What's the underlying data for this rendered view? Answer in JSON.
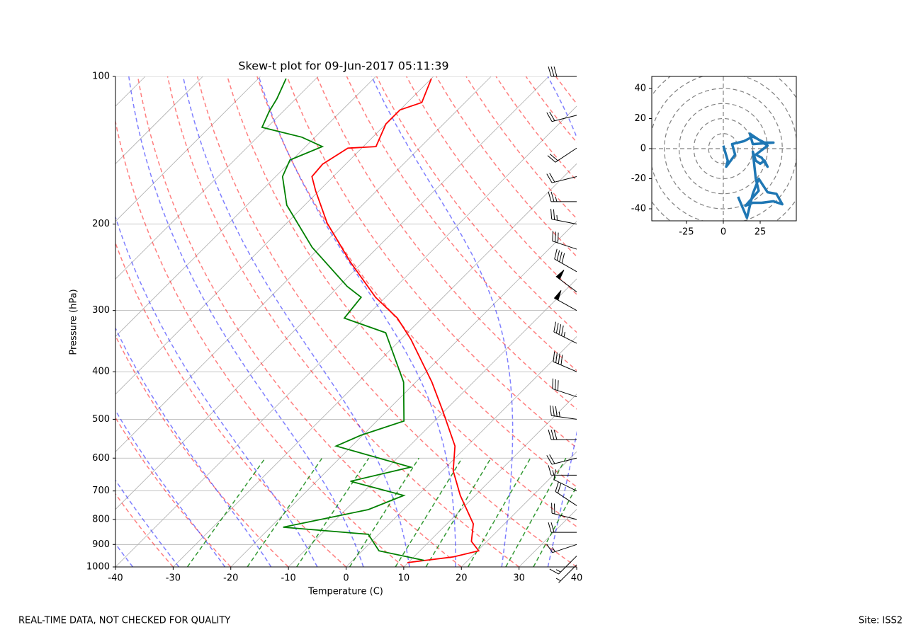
{
  "chart_data": [
    {
      "type": "skewt",
      "title": "Skew-t plot for 09-Jun-2017 05:11:39",
      "xlabel": "Temperature (C)",
      "ylabel": "Pressure (hPa)",
      "xlim": [
        -40,
        40
      ],
      "ylim": [
        1000,
        100
      ],
      "yscale": "log",
      "grid": true,
      "xticks": [
        -40,
        -30,
        -20,
        -10,
        0,
        10,
        20,
        30,
        40
      ],
      "yticks": [
        1000,
        900,
        800,
        700,
        600,
        500,
        400,
        300,
        200,
        100
      ],
      "series": [
        {
          "color": "#ff0000",
          "pressure": [
            980,
            954,
            927,
            887,
            817,
            715,
            637,
            567,
            480,
            420,
            344,
            311,
            282,
            239,
            199,
            171,
            160,
            151,
            140,
            139,
            125,
            117,
            113,
            101
          ],
          "values": [
            9.9,
            16.9,
            20.2,
            17.3,
            14.6,
            7.4,
            1.9,
            -2.1,
            -10.4,
            -17.2,
            -28.2,
            -34.3,
            -41.7,
            -52.2,
            -63,
            -70.6,
            -73.7,
            -74,
            -72.4,
            -67.8,
            -70,
            -70,
            -67.5,
            -70
          ]
        },
        {
          "color": "#008000",
          "pressure": [
            970,
            927,
            858,
            830,
            764,
            715,
            669,
            626,
            567,
            539,
            504,
            420,
            333,
            311,
            282,
            268,
            223,
            183,
            160,
            148,
            139,
            133,
            127,
            118,
            111,
            101
          ],
          "values": [
            12.4,
            2.9,
            -1.8,
            -17.8,
            -6.1,
            -2.4,
            -14.1,
            -6.1,
            -22.7,
            -20.3,
            -15.3,
            -22.1,
            -33.8,
            -43.5,
            -44.2,
            -48.5,
            -61.4,
            -73.1,
            -78.8,
            -80.4,
            -77.1,
            -82.3,
            -90.9,
            -92.4,
            -93.3,
            -95.2
          ]
        }
      ],
      "barbs": {
        "color": "#000000",
        "pressure": [
          990,
          950,
          900,
          850,
          800,
          750,
          700,
          650,
          600,
          550,
          500,
          450,
          400,
          350,
          300,
          275,
          250,
          225,
          200,
          180,
          160,
          140,
          120,
          100
        ],
        "u": [
          5,
          10,
          15,
          20,
          20,
          15,
          10,
          15,
          20,
          30,
          35,
          30,
          35,
          40,
          45,
          40,
          35,
          30,
          25,
          25,
          20,
          15,
          20,
          30
        ],
        "v": [
          5,
          10,
          5,
          0,
          -5,
          -10,
          -5,
          0,
          5,
          0,
          -5,
          -10,
          -15,
          -20,
          -25,
          -30,
          -20,
          -10,
          -5,
          0,
          5,
          10,
          5,
          0
        ]
      }
    },
    {
      "type": "hodograph",
      "xlim": [
        -48.5,
        49.5
      ],
      "ylim": [
        -48,
        48
      ],
      "xticks": [
        -25,
        0,
        25
      ],
      "yticks": [
        -40,
        -20,
        0,
        20,
        40
      ],
      "series": [
        {
          "color": "#1f77b4",
          "u": [
            0,
            3,
            2,
            8,
            6,
            14,
            20,
            28,
            34,
            20,
            18,
            24,
            30,
            22,
            26,
            30,
            28,
            25,
            22,
            20,
            22,
            24,
            15,
            20,
            26,
            34,
            40,
            36,
            30,
            24,
            20,
            16,
            10
          ],
          "v": [
            2,
            -8,
            -12,
            -4,
            3,
            5,
            8,
            4,
            4,
            3,
            10,
            6,
            2,
            -4,
            -6,
            -12,
            -8,
            -10,
            -8,
            -2,
            -20,
            -28,
            -38,
            -36,
            -36,
            -35,
            -37,
            -30,
            -29,
            -20,
            -30,
            -46,
            -32
          ]
        }
      ]
    }
  ],
  "footer": {
    "left": "REAL-TIME DATA, NOT CHECKED FOR QUALITY",
    "right": "Site: ISS2"
  }
}
